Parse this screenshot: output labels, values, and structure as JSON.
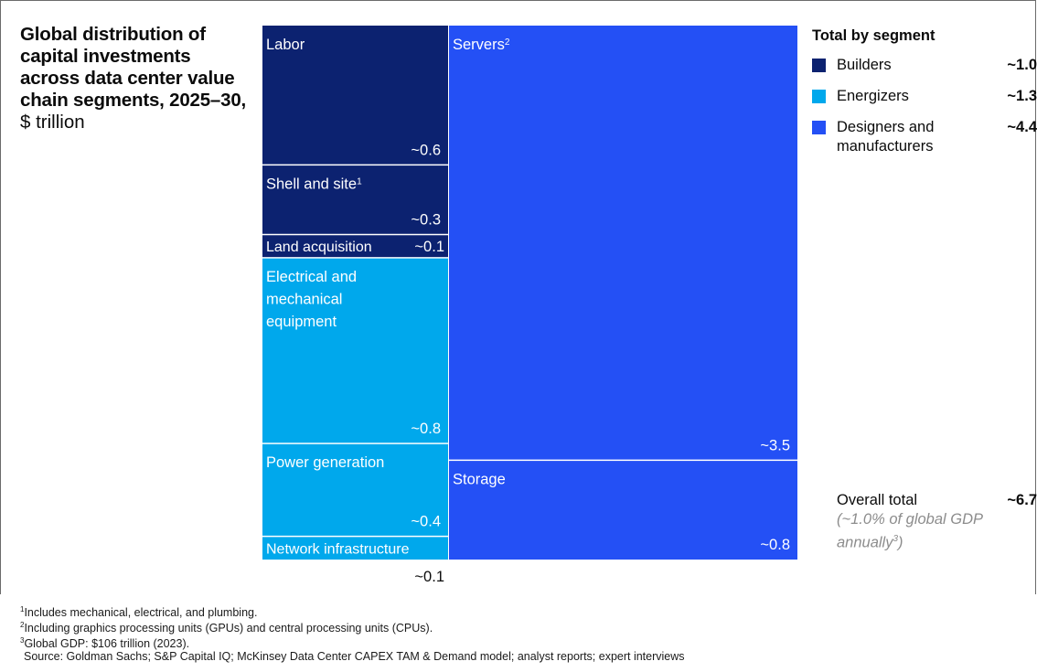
{
  "title": "Global distribution of capital investments across data center value chain segments, 2025–30,",
  "unit": "$ trillion",
  "legend": {
    "title": "Total by segment",
    "items": [
      {
        "label": "Builders",
        "value": "~1.0",
        "color": "#0c2270"
      },
      {
        "label": "Energizers",
        "value": "~1.3",
        "color": "#00a8ec"
      },
      {
        "label": "Designers and manufacturers",
        "value": "~4.4",
        "color": "#2450f5"
      }
    ]
  },
  "total": {
    "label": "Overall total",
    "value": "~6.7",
    "note": "(~1.0% of global GDP annually",
    "note_sup": "3",
    "note_end": ")"
  },
  "footnotes": [
    {
      "sup": "1",
      "text": "Includes mechanical, electrical, and plumbing."
    },
    {
      "sup": "2",
      "text": "Including graphics processing units (GPUs) and central processing units (CPUs)."
    },
    {
      "sup": "3",
      "text": "Global GDP: $106 trillion (2023)."
    },
    {
      "sup": "",
      "text": "Source: Goldman Sachs; S&P Capital IQ; McKinsey Data Center CAPEX TAM & Demand model; analyst reports; expert interviews"
    }
  ],
  "chart_data": {
    "type": "treemap",
    "unit": "$ trillion",
    "cells": [
      {
        "name": "Labor",
        "segment": "Builders",
        "value": 0.6,
        "value_label": "~0.6"
      },
      {
        "name": "Shell and site",
        "name_sup": "1",
        "segment": "Builders",
        "value": 0.3,
        "value_label": "~0.3"
      },
      {
        "name": "Land acquisition",
        "segment": "Builders",
        "value": 0.1,
        "value_label": "~0.1"
      },
      {
        "name": "Electrical and mechanical equipment",
        "segment": "Energizers",
        "value": 0.8,
        "value_label": "~0.8"
      },
      {
        "name": "Power generation",
        "segment": "Energizers",
        "value": 0.4,
        "value_label": "~0.4"
      },
      {
        "name": "Network infrastructure",
        "segment": "Energizers",
        "value": 0.1,
        "value_label": "~0.1"
      },
      {
        "name": "Servers",
        "name_sup": "2",
        "segment": "Designers and manufacturers",
        "value": 3.5,
        "value_label": "~3.5"
      },
      {
        "name": "Storage",
        "segment": "Designers and manufacturers",
        "value": 0.8,
        "value_label": "~0.8"
      }
    ]
  }
}
